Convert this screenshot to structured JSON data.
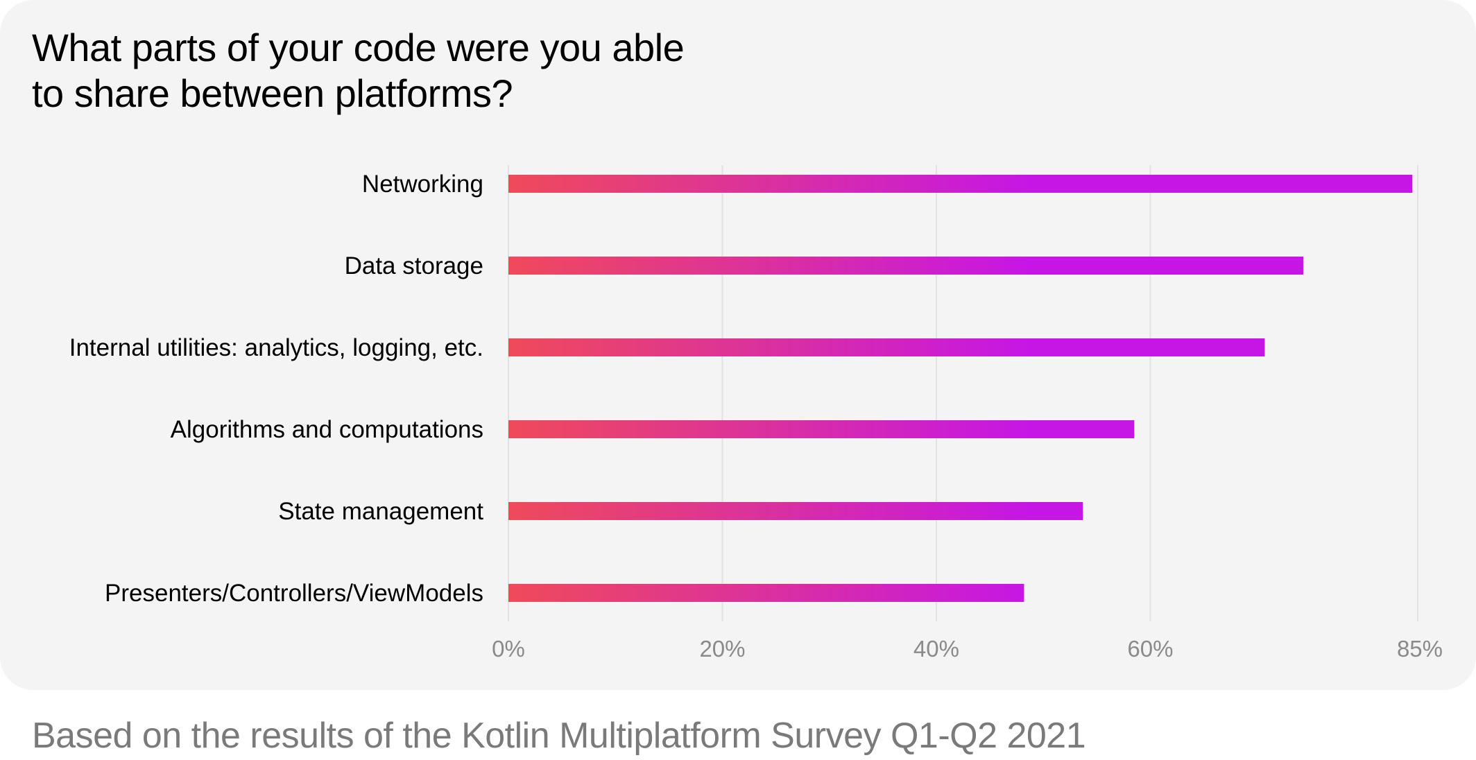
{
  "title": "What parts of your code were you able\nto share between platforms?",
  "footnote": "Based on the results of the Kotlin Multiplatform Survey Q1-Q2 2021",
  "colors": {
    "bar_start": "#ef4a5a",
    "bar_end": "#c516e6",
    "grid": "#e2e2e2",
    "tick_text": "#8a8a8a",
    "background": "#f4f4f4"
  },
  "chart_data": {
    "type": "bar",
    "orientation": "horizontal",
    "categories": [
      "Networking",
      "Data storage",
      "Internal utilities: analytics, logging, etc.",
      "Algorithms and computations",
      "State management",
      "Presenters/Controllers/ViewModels"
    ],
    "values": [
      84.5,
      74.3,
      70.7,
      58.5,
      53.7,
      48.2
    ],
    "unit": "%",
    "xlim": [
      0,
      85
    ],
    "x_ticks": [
      0,
      20,
      40,
      60,
      85
    ],
    "x_tick_labels": [
      "0%",
      "20%",
      "40%",
      "60%",
      "85%"
    ],
    "grid": "vertical",
    "legend": "none"
  }
}
